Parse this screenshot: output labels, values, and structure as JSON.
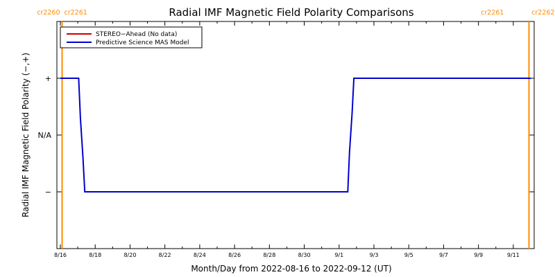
{
  "chart_data": {
    "type": "line",
    "title": "Radial IMF Magnetic Field Polarity Comparisons",
    "xlabel": "Month/Day from 2022-08-16 to 2022-09-12 (UT)",
    "ylabel": "Radial IMF Magnetic Field Polarity (−,+)",
    "x_range_days": [
      0,
      27
    ],
    "x_range_dates": [
      "2022-08-16",
      "2022-09-12"
    ],
    "ylim": [
      -2.0,
      2.0
    ],
    "x_ticks": [
      {
        "label": "8/16",
        "day": 0
      },
      {
        "label": "8/18",
        "day": 2
      },
      {
        "label": "8/20",
        "day": 4
      },
      {
        "label": "8/22",
        "day": 6
      },
      {
        "label": "8/24",
        "day": 8
      },
      {
        "label": "8/26",
        "day": 10
      },
      {
        "label": "8/28",
        "day": 12
      },
      {
        "label": "8/30",
        "day": 14
      },
      {
        "label": "9/1",
        "day": 16
      },
      {
        "label": "9/3",
        "day": 18
      },
      {
        "label": "9/5",
        "day": 20
      },
      {
        "label": "9/7",
        "day": 22
      },
      {
        "label": "9/9",
        "day": 24
      },
      {
        "label": "9/11",
        "day": 26
      }
    ],
    "y_ticks": [
      {
        "label": "+",
        "value": 1
      },
      {
        "label": "N/A",
        "value": 0
      },
      {
        "label": "−",
        "value": -1
      }
    ],
    "carrington_markers": [
      {
        "day": 0.1,
        "label_left": "cr2260",
        "label_right": "cr2261"
      },
      {
        "day": 26.9,
        "label_left": "cr2261",
        "label_right": "cr2262"
      }
    ],
    "series": [
      {
        "name": "STEREO−Ahead (No data)",
        "color": "#cc0000",
        "x": [],
        "y": []
      },
      {
        "name": "Predictive Science MAS Model",
        "color": "#0000cc",
        "x": [
          0.0,
          1.05,
          1.15,
          1.3,
          1.4,
          16.5,
          16.6,
          16.75,
          16.85,
          27.0
        ],
        "y": [
          1,
          1,
          0.3,
          -0.4,
          -1,
          -1,
          -0.3,
          0.4,
          1,
          1
        ]
      }
    ],
    "legend_position": "top-left",
    "grid": false
  },
  "colors": {
    "axis": "#000000",
    "carrington_line": "#ff8c00",
    "legend_border": "#000000"
  }
}
